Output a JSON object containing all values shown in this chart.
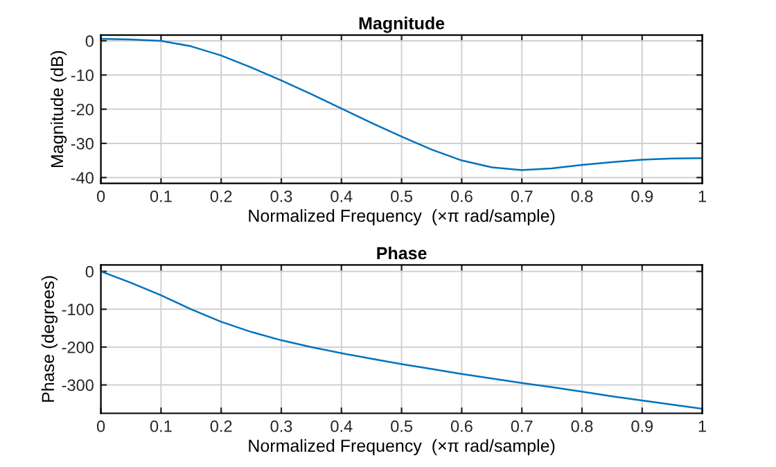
{
  "chart_data": [
    {
      "type": "line",
      "title": "Magnitude",
      "xlabel": "Normalized Frequency  (×π rad/sample)",
      "ylabel": "Magnitude (dB)",
      "x": [
        0,
        0.05,
        0.1,
        0.15,
        0.2,
        0.25,
        0.3,
        0.35,
        0.4,
        0.45,
        0.5,
        0.55,
        0.6,
        0.65,
        0.7,
        0.75,
        0.8,
        0.85,
        0.9,
        0.95,
        1.0
      ],
      "series": [
        {
          "color": "#0072bd",
          "values": [
            0.6,
            0.4,
            0,
            -1.6,
            -4.3,
            -7.8,
            -11.6,
            -15.6,
            -19.8,
            -24,
            -28,
            -31.8,
            -35,
            -37,
            -37.8,
            -37.3,
            -36.3,
            -35.5,
            -34.8,
            -34.4,
            -34.3
          ]
        }
      ],
      "xlim": [
        0,
        1
      ],
      "xticks": [
        0,
        0.1,
        0.2,
        0.3,
        0.4,
        0.5,
        0.6,
        0.7,
        0.8,
        0.9,
        1
      ],
      "ylim": [
        -41.7,
        1.7
      ],
      "yticks": [
        -40,
        -30,
        -20,
        -10,
        0
      ],
      "grid": true
    },
    {
      "type": "line",
      "title": "Phase",
      "xlabel": "Normalized Frequency  (×π rad/sample)",
      "ylabel": "Phase (degrees)",
      "x": [
        0,
        0.05,
        0.1,
        0.15,
        0.2,
        0.25,
        0.3,
        0.35,
        0.4,
        0.45,
        0.5,
        0.55,
        0.6,
        0.65,
        0.7,
        0.75,
        0.8,
        0.85,
        0.9,
        0.95,
        1.0
      ],
      "series": [
        {
          "color": "#0072bd",
          "values": [
            0,
            -30,
            -63,
            -100,
            -133,
            -160,
            -182,
            -200,
            -216,
            -231,
            -245,
            -258,
            -271,
            -283,
            -295,
            -306,
            -318,
            -330,
            -341,
            -352,
            -363
          ]
        }
      ],
      "xlim": [
        0,
        1
      ],
      "xticks": [
        0,
        0.1,
        0.2,
        0.3,
        0.4,
        0.5,
        0.6,
        0.7,
        0.8,
        0.9,
        1
      ],
      "ylim": [
        -375,
        17
      ],
      "yticks": [
        -300,
        -200,
        -100,
        0
      ],
      "grid": true
    }
  ]
}
